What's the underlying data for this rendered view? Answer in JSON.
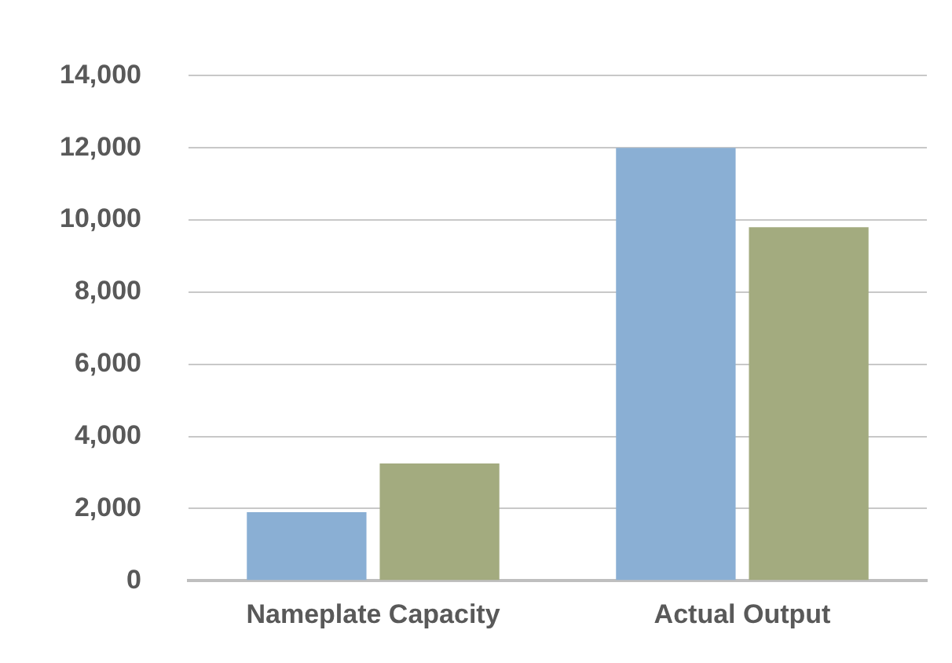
{
  "chart_data": {
    "type": "bar",
    "categories": [
      "Nameplate Capacity",
      "Actual Output"
    ],
    "series": [
      {
        "color": "#8aafd4",
        "values": [
          1900,
          12000
        ]
      },
      {
        "color": "#a3ab7f",
        "values": [
          3250,
          9800
        ]
      }
    ],
    "ylim": [
      0,
      14000
    ],
    "yticks": [
      {
        "value": 0,
        "label": "0"
      },
      {
        "value": 2000,
        "label": "2,000"
      },
      {
        "value": 4000,
        "label": "4,000"
      },
      {
        "value": 6000,
        "label": "6,000"
      },
      {
        "value": 8000,
        "label": "8,000"
      },
      {
        "value": 10000,
        "label": "10,000"
      },
      {
        "value": 12000,
        "label": "12,000"
      },
      {
        "value": 14000,
        "label": "14,000"
      }
    ],
    "grid": "y",
    "legend": false
  }
}
